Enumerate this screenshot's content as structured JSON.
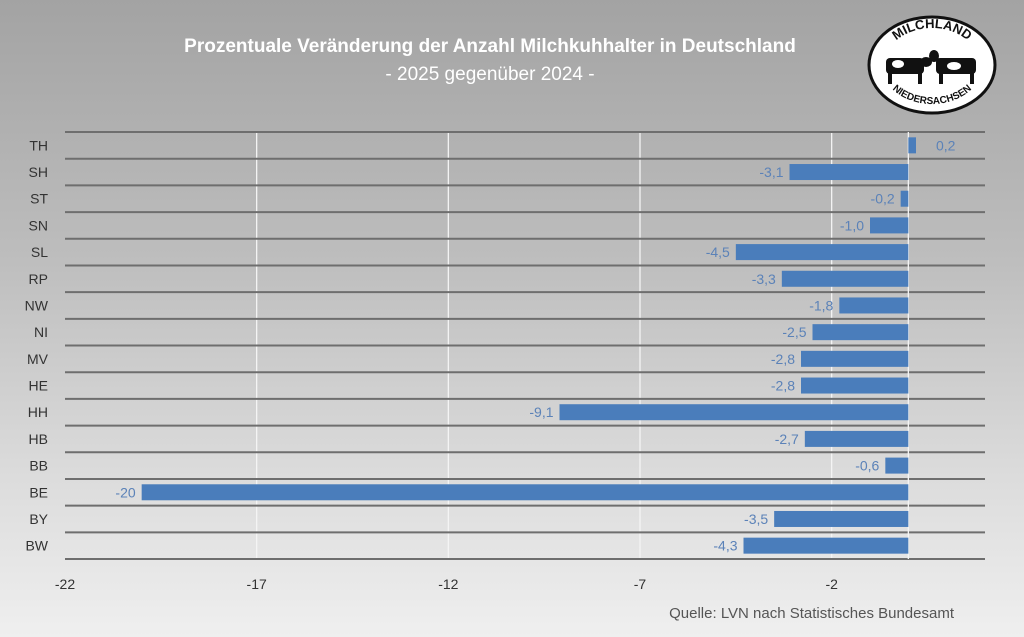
{
  "chart_data": {
    "type": "bar",
    "orientation": "horizontal",
    "title": "Prozentuale Veränderung der Anzahl Milchkuhhalter in Deutschland",
    "subtitle": "- 2025 gegenüber 2024 -",
    "categories": [
      "TH",
      "SH",
      "ST",
      "SN",
      "SL",
      "RP",
      "NW",
      "NI",
      "MV",
      "HE",
      "HH",
      "HB",
      "BB",
      "BE",
      "BY",
      "BW"
    ],
    "values": [
      0.2,
      -3.1,
      -0.2,
      -1.0,
      -4.5,
      -3.3,
      -1.8,
      -2.5,
      -2.8,
      -2.8,
      -9.1,
      -2.7,
      -0.6,
      -20,
      -3.5,
      -4.3
    ],
    "data_labels": [
      "0,2",
      "-3,1",
      "-0,2",
      "-1,0",
      "-4,5",
      "-3,3",
      "-1,8",
      "-2,5",
      "-2,8",
      "-2,8",
      "-9,1",
      "-2,7",
      "-0,6",
      "-20",
      "-3,5",
      "-4,3"
    ],
    "xlim": [
      -22,
      2
    ],
    "xticks": [
      -22,
      -17,
      -12,
      -7,
      -2
    ],
    "xtick_labels": [
      "-22",
      "-17",
      "-12",
      "-7",
      "-2"
    ],
    "xlabel": "",
    "ylabel": "",
    "grid": true,
    "colors": {
      "bar": "#4a7dbb",
      "data_label": "#5b82b8"
    }
  },
  "source": "Quelle: LVN nach Statistisches Bundesamt",
  "logo": {
    "top_text": "MILCHLAND",
    "bottom_text": "NIEDERSACHSEN"
  }
}
